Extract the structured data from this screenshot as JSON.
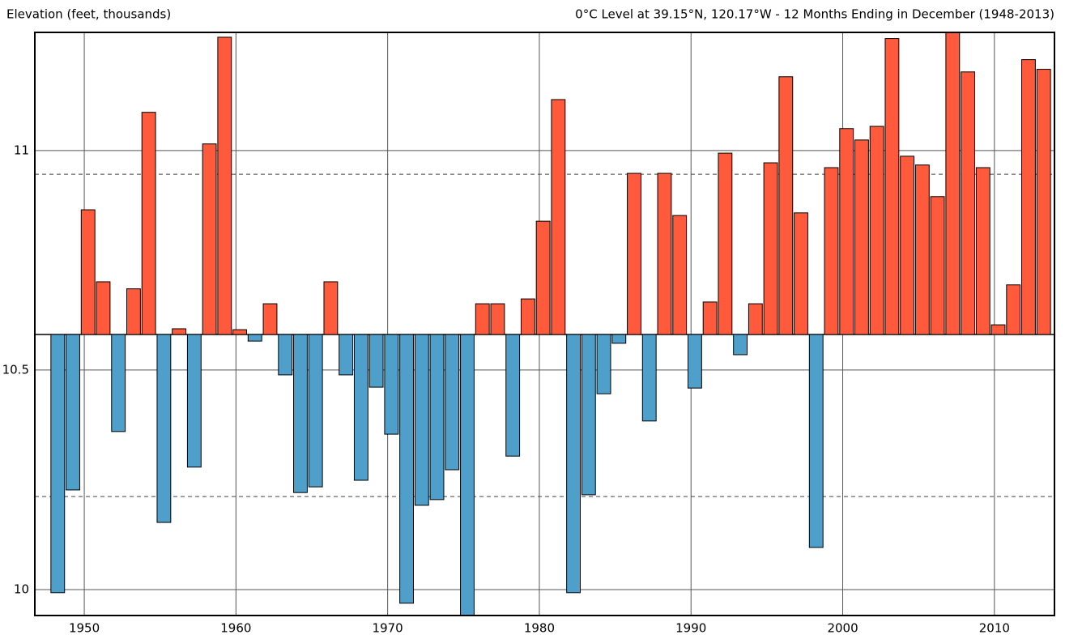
{
  "chart_data": {
    "type": "bar",
    "title": "0°C Level at 39.15°N, 120.17°W - 12 Months Ending in December (1948-2013)",
    "y_label": "Elevation (feet, thousands)",
    "x": [
      1948,
      1949,
      1950,
      1951,
      1952,
      1953,
      1954,
      1955,
      1956,
      1957,
      1958,
      1959,
      1960,
      1961,
      1962,
      1963,
      1964,
      1965,
      1966,
      1967,
      1968,
      1969,
      1970,
      1971,
      1972,
      1973,
      1974,
      1975,
      1976,
      1977,
      1978,
      1979,
      1980,
      1981,
      1982,
      1983,
      1984,
      1985,
      1986,
      1987,
      1988,
      1989,
      1990,
      1991,
      1992,
      1993,
      1994,
      1995,
      1996,
      1997,
      1998,
      1999,
      2000,
      2001,
      2002,
      2003,
      2004,
      2005,
      2006,
      2007,
      2008,
      2009,
      2010,
      2011,
      2012,
      2013
    ],
    "values": [
      9.993,
      10.227,
      10.865,
      10.701,
      10.36,
      10.685,
      11.087,
      10.153,
      10.594,
      10.279,
      11.015,
      11.258,
      10.592,
      10.566,
      10.651,
      10.489,
      10.221,
      10.234,
      10.701,
      10.489,
      10.249,
      10.461,
      10.354,
      9.969,
      10.192,
      10.205,
      10.273,
      9.94,
      10.651,
      10.651,
      10.304,
      10.662,
      10.839,
      11.116,
      9.993,
      10.216,
      10.446,
      10.561,
      10.948,
      10.384,
      10.948,
      10.852,
      10.459,
      10.655,
      10.994,
      10.535,
      10.651,
      10.972,
      11.168,
      10.858,
      10.096,
      10.961,
      11.05,
      11.024,
      11.055,
      11.255,
      10.987,
      10.967,
      10.895,
      11.269,
      11.179,
      10.961,
      10.603,
      10.694,
      11.207,
      11.185
    ],
    "baseline": 10.581,
    "reference_lines": [
      10.946,
      10.212
    ],
    "above_color": "#ff5a3c",
    "below_color": "#4f9fcb",
    "xlim": [
      1946.74,
      2013.96
    ],
    "xticks": [
      1950,
      1960,
      1970,
      1980,
      1990,
      2000,
      2010
    ],
    "ylim": [
      9.941,
      11.269
    ],
    "yticks": [
      10,
      10.5,
      11
    ],
    "grid": true
  }
}
